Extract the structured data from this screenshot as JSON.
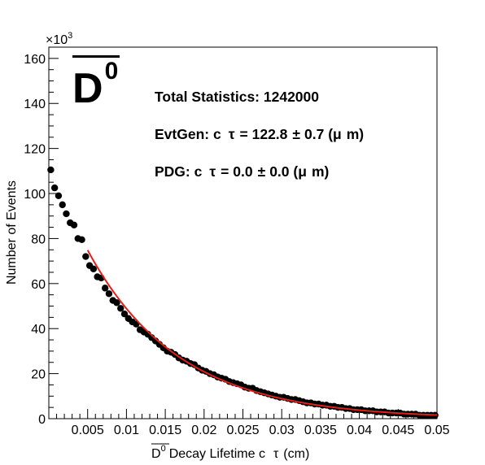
{
  "chart_data": {
    "type": "scatter",
    "title": "",
    "xlabel": "Decay Lifetime c",
    "xlabel_prefix": "D",
    "xlabel_prefix_sup": "0",
    "xlabel_tau": "τ",
    "xlabel_unit": "(cm)",
    "ylabel": "Number of Events",
    "y_multiplier": "×10",
    "y_multiplier_exp": "3",
    "xlim": [
      0,
      0.05
    ],
    "ylim": [
      0,
      165
    ],
    "x_tick_labels": [
      "0.005",
      "0.01",
      "0.015",
      "0.02",
      "0.025",
      "0.03",
      "0.035",
      "0.04",
      "0.045",
      "0.05"
    ],
    "y_tick_labels": [
      "0",
      "20",
      "40",
      "60",
      "80",
      "100",
      "120",
      "140",
      "160"
    ],
    "grid": false,
    "series": [
      {
        "kind": "points",
        "color": "#000000",
        "x": [
          0.00025,
          0.00075,
          0.00125,
          0.00175,
          0.00225,
          0.00275,
          0.00325,
          0.00375,
          0.00425,
          0.00475,
          0.00525,
          0.00575,
          0.00625,
          0.00675,
          0.00725,
          0.00775,
          0.00825,
          0.00875,
          0.00925,
          0.00975,
          0.01025,
          0.01075,
          0.01125,
          0.01175,
          0.01225,
          0.01275,
          0.01325,
          0.01375,
          0.01425,
          0.01475,
          0.01525,
          0.01575,
          0.01625,
          0.01675,
          0.01725,
          0.01775,
          0.01825,
          0.01875,
          0.01925,
          0.01975,
          0.02025,
          0.02075,
          0.02125,
          0.02175,
          0.02225,
          0.02275,
          0.02325,
          0.02375,
          0.02425,
          0.02475,
          0.02525,
          0.02575,
          0.02625,
          0.02675,
          0.02725,
          0.02775,
          0.02825,
          0.02875,
          0.02925,
          0.02975,
          0.03025,
          0.03075,
          0.03125,
          0.03175,
          0.03225,
          0.03275,
          0.03325,
          0.03375,
          0.03425,
          0.03475,
          0.03525,
          0.03575,
          0.03625,
          0.03675,
          0.03725,
          0.03775,
          0.03825,
          0.03875,
          0.03925,
          0.03975,
          0.04025,
          0.04075,
          0.04125,
          0.04175,
          0.04225,
          0.04275,
          0.04325,
          0.04375,
          0.04425,
          0.04475,
          0.04525,
          0.04575,
          0.04625,
          0.04675,
          0.04725,
          0.04775,
          0.04825,
          0.04875,
          0.04925,
          0.04975
        ],
        "y": [
          110.5,
          102.5,
          99,
          95,
          91,
          87,
          86,
          80,
          79.5,
          72,
          68,
          66.5,
          63,
          62.5,
          58,
          55.5,
          52.5,
          51.5,
          49,
          46.5,
          44.5,
          43,
          42,
          39.5,
          38.5,
          37.5,
          36,
          34.5,
          33,
          31.5,
          30,
          29.5,
          28.5,
          27,
          26,
          25.5,
          24.5,
          24,
          22.5,
          21.5,
          21,
          20,
          19.5,
          18.5,
          18,
          17.5,
          16.5,
          16,
          15.5,
          15,
          14,
          13.5,
          13.5,
          12.5,
          12,
          11.5,
          11,
          10.5,
          10,
          9.5,
          9.5,
          9,
          8.5,
          8.5,
          8,
          7.5,
          7,
          7,
          6.5,
          6.5,
          6,
          6,
          5.5,
          5.5,
          5,
          5,
          4.5,
          4.5,
          4,
          4,
          4,
          3.5,
          3.5,
          3.5,
          3,
          3,
          3,
          2.5,
          2.5,
          2.5,
          2.5,
          2,
          2,
          2,
          2,
          1.5,
          1.5,
          1.5,
          1.5,
          1.5
        ]
      },
      {
        "kind": "fit",
        "color": "#e0201a",
        "x_start": 0.005,
        "x_end": 0.05
      }
    ]
  },
  "annotations": {
    "particle_symbol": "D",
    "particle_sup": "0",
    "total_statistics": "Total Statistics: 1242000",
    "evtgen_prefix": "EvtGen: c",
    "evtgen_tau": "τ",
    "evtgen_value": "= 122.8",
    "evtgen_pm": "±",
    "evtgen_err": "0.7 (",
    "evtgen_mu": "μ",
    "evtgen_unit": "m)",
    "pdg_prefix": "PDG: c",
    "pdg_tau": "τ",
    "pdg_value": "= 0.0",
    "pdg_pm": "±",
    "pdg_err": "0.0 (",
    "pdg_mu": "μ",
    "pdg_unit": "m)"
  }
}
